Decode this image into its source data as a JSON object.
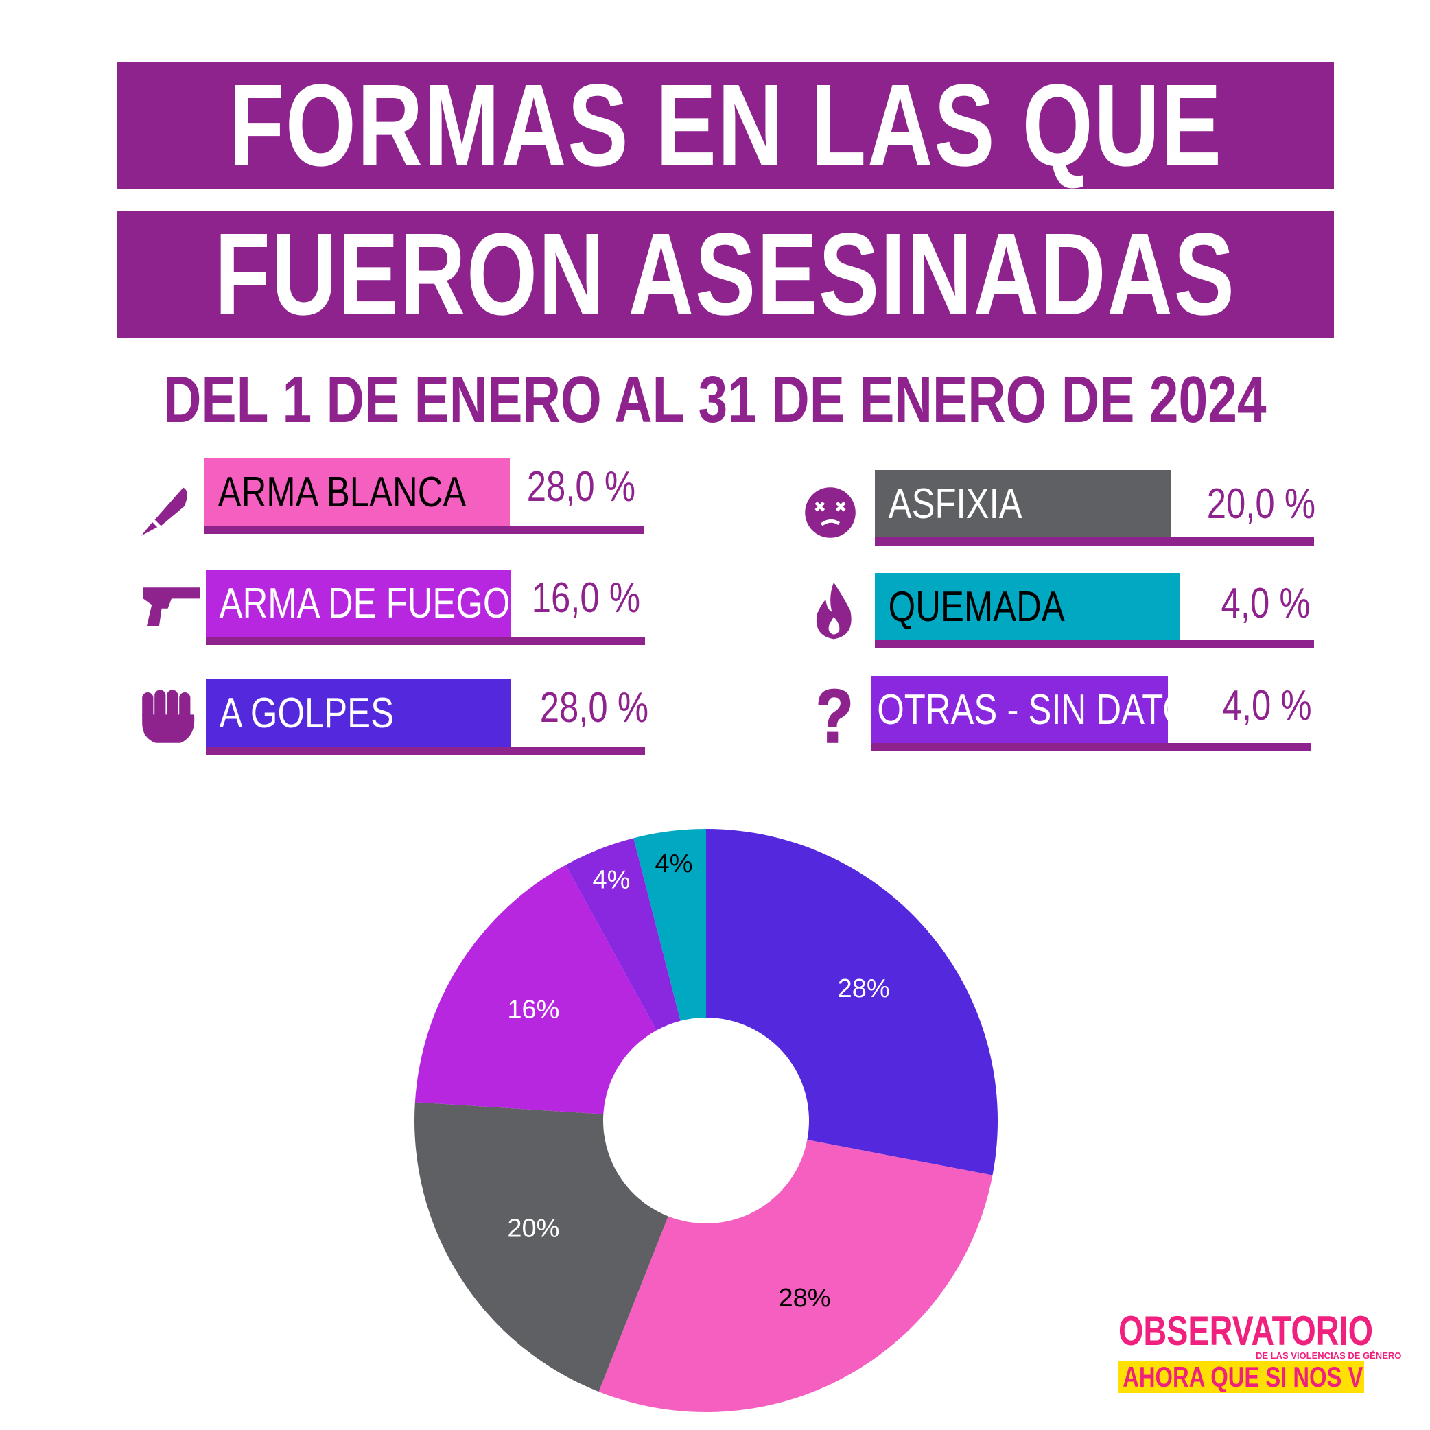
{
  "title_line1": "FORMAS EN LAS QUE",
  "title_line2": "FUERON ASESINADAS",
  "subtitle": "DEL 1 DE ENERO AL 31 DE ENERO DE 2024",
  "legend": [
    {
      "label": "ARMA BLANCA",
      "pct": "28,0 %",
      "color": "#f55fc0",
      "text_color": "#000000",
      "icon": "knife-icon"
    },
    {
      "label": "ARMA DE FUEGO",
      "pct": "16,0 %",
      "color": "#b827e0",
      "text_color": "#ffffff",
      "icon": "pistol-icon"
    },
    {
      "label": "A GOLPES",
      "pct": "28,0 %",
      "color": "#5428dc",
      "text_color": "#ffffff",
      "icon": "fist-icon"
    },
    {
      "label": "ASFIXIA",
      "pct": "20,0 %",
      "color": "#5f6063",
      "text_color": "#ffffff",
      "icon": "dizzy-face-icon"
    },
    {
      "label": "QUEMADA",
      "pct": "4,0 %",
      "color": "#00a8c2",
      "text_color": "#000000",
      "icon": "fire-icon"
    },
    {
      "label": "OTRAS - SIN DATOS",
      "pct": "4,0 %",
      "color": "#8a28e0",
      "text_color": "#ffffff",
      "icon": "question-icon"
    }
  ],
  "chart_data": {
    "type": "pie",
    "donut": true,
    "start_angle_deg": 0,
    "direction": "clockwise",
    "slices": [
      {
        "name": "A GOLPES",
        "value": 28,
        "label": "28%",
        "color": "#5428dc",
        "label_color": "#ffffff"
      },
      {
        "name": "ARMA BLANCA",
        "value": 28,
        "label": "28%",
        "color": "#f55fc0",
        "label_color": "#000000"
      },
      {
        "name": "ASFIXIA",
        "value": 20,
        "label": "20%",
        "color": "#5f6063",
        "label_color": "#ffffff"
      },
      {
        "name": "ARMA DE FUEGO",
        "value": 16,
        "label": "16%",
        "color": "#b827e0",
        "label_color": "#ffffff"
      },
      {
        "name": "OTRAS - SIN DATOS",
        "value": 4,
        "label": "4%",
        "color": "#8a28e0",
        "label_color": "#ffffff"
      },
      {
        "name": "QUEMADA",
        "value": 4,
        "label": "4%",
        "color": "#00a8c2",
        "label_color": "#000000"
      }
    ]
  },
  "logo": {
    "top": "OBSERVATORIO",
    "small": "DE LAS VIOLENCIAS DE GÉNERO",
    "bottom": "AHORA QUE SI NOS VEN"
  },
  "colors": {
    "brand_purple": "#8e238e",
    "logo_pink": "#f0207e",
    "logo_yellow": "#ffe000"
  }
}
